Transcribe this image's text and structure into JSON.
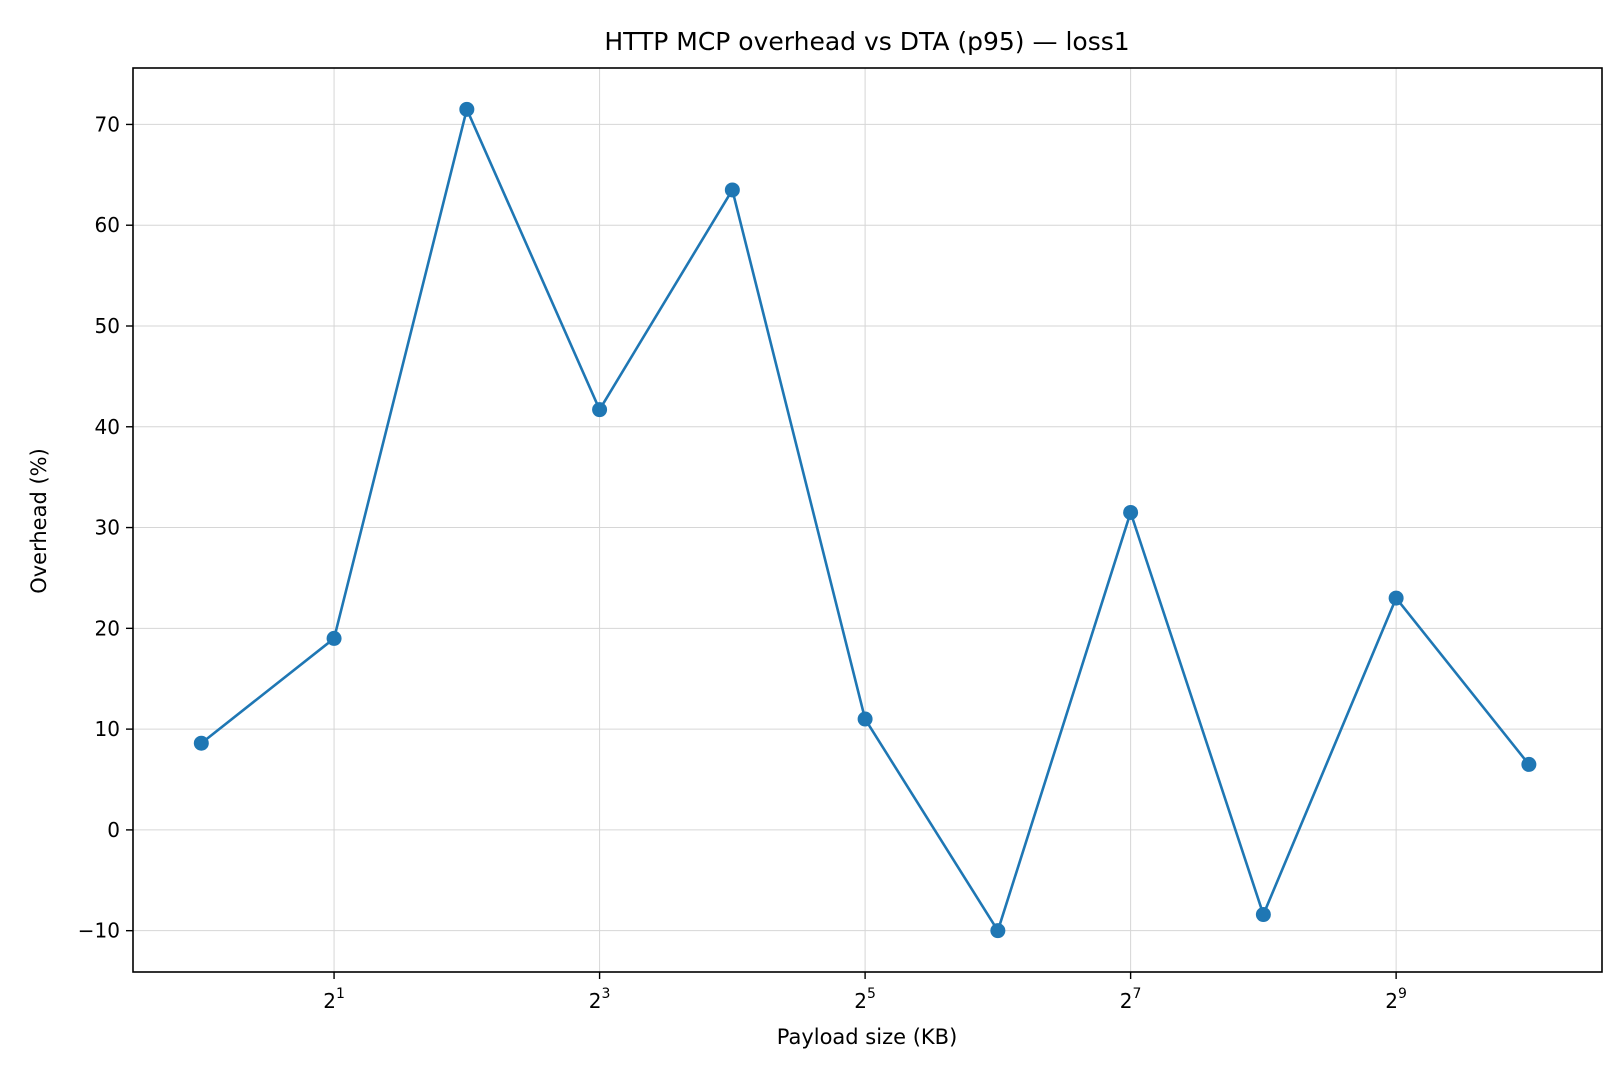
{
  "chart_data": {
    "type": "line",
    "title": "HTTP MCP overhead vs DTA (p95) — loss1",
    "xlabel": "Payload size (KB)",
    "ylabel": "Overhead (%)",
    "x_scale": "log2",
    "x": [
      1,
      2,
      4,
      8,
      16,
      32,
      64,
      128,
      256,
      512,
      1024
    ],
    "xlim": [
      0.7,
      1500
    ],
    "x_ticks": [
      {
        "value": 2,
        "base": "2",
        "exp": "1"
      },
      {
        "value": 8,
        "base": "2",
        "exp": "3"
      },
      {
        "value": 32,
        "base": "2",
        "exp": "5"
      },
      {
        "value": 128,
        "base": "2",
        "exp": "7"
      },
      {
        "value": 512,
        "base": "2",
        "exp": "9"
      }
    ],
    "ylim": [
      -14.1,
      75.6
    ],
    "y_ticks": [
      {
        "value": -10,
        "label": "−10"
      },
      {
        "value": 0,
        "label": "0"
      },
      {
        "value": 10,
        "label": "10"
      },
      {
        "value": 20,
        "label": "20"
      },
      {
        "value": 30,
        "label": "30"
      },
      {
        "value": 40,
        "label": "40"
      },
      {
        "value": 50,
        "label": "50"
      },
      {
        "value": 60,
        "label": "60"
      },
      {
        "value": 70,
        "label": "70"
      }
    ],
    "grid": true,
    "series": [
      {
        "values": [
          8.6,
          19.0,
          71.5,
          41.7,
          63.5,
          11.0,
          -10.0,
          31.5,
          -8.4,
          23.0,
          6.5
        ],
        "color": "#1f77b4",
        "marker": "circle"
      }
    ]
  }
}
